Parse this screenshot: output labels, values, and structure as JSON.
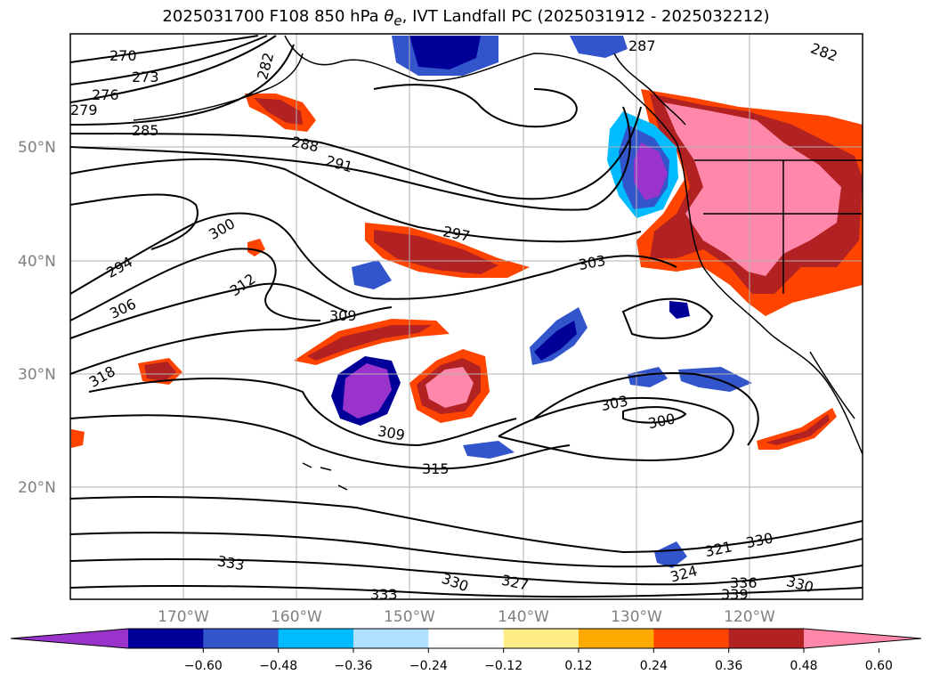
{
  "title": {
    "prefix": "2025031700 F108 850 hPa ",
    "symbol": "θ",
    "subscript": "e",
    "suffix": ", IVT Landfall PC (2025031912 - 2025032212)"
  },
  "map": {
    "lat_labels": [
      "50°N",
      "40°N",
      "30°N",
      "20°N"
    ],
    "lon_labels": [
      "170°W",
      "160°W",
      "150°W",
      "140°W",
      "130°W",
      "120°W"
    ],
    "contour_labels": [
      "270",
      "273",
      "276",
      "279",
      "282",
      "285",
      "288",
      "291",
      "294",
      "297",
      "300",
      "303",
      "306",
      "309",
      "312",
      "315",
      "318",
      "321",
      "324",
      "327",
      "330",
      "333",
      "336",
      "339",
      "287"
    ],
    "grid": true,
    "colors": {
      "land_line": "#000000",
      "grid": "#b0b0b0",
      "contour": "#000000"
    }
  },
  "colorbar": {
    "ticks": [
      "−0.60",
      "−0.48",
      "−0.36",
      "−0.24",
      "−0.12",
      "0.12",
      "0.24",
      "0.36",
      "0.48",
      "0.60"
    ],
    "colors": [
      "#9933cc",
      "#000099",
      "#3355cc",
      "#00bbff",
      "#b0e0ff",
      "#ffffff",
      "#ffee88",
      "#ffaa00",
      "#ff4400",
      "#b22222",
      "#ff88aa"
    ],
    "extend": "both"
  }
}
